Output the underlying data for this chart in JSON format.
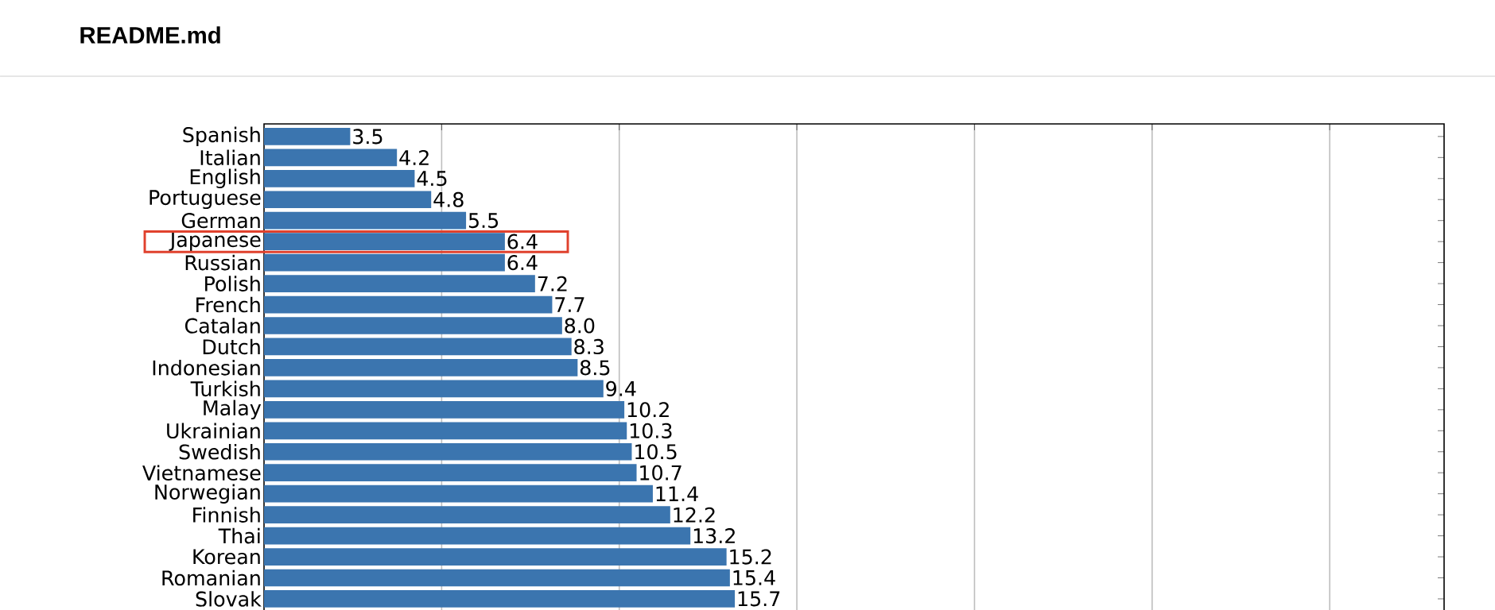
{
  "chart_data": {
    "type": "bar",
    "orientation": "horizontal",
    "title": "README.md",
    "categories": [
      "Spanish",
      "Italian",
      "English",
      "Portuguese",
      "German",
      "Japanese",
      "Russian",
      "Polish",
      "French",
      "Catalan",
      "Dutch",
      "Indonesian",
      "Turkish",
      "Malay",
      "Ukrainian",
      "Swedish",
      "Vietnamese",
      "Norwegian",
      "Finnish",
      "Thai",
      "Korean",
      "Romanian",
      "Slovak"
    ],
    "values": [
      3.5,
      4.2,
      4.5,
      4.8,
      5.5,
      6.4,
      6.4,
      7.2,
      7.7,
      8.0,
      8.3,
      8.5,
      9.4,
      10.2,
      10.3,
      10.5,
      10.7,
      11.4,
      12.2,
      13.2,
      15.2,
      15.4,
      15.7
    ],
    "value_labels": [
      "3.5",
      "4.2",
      "4.5",
      "4.8",
      "5.5",
      "6.4",
      "6.4",
      "7.2",
      "7.7",
      "8.0",
      "8.3",
      "8.5",
      "9.4",
      "10.2",
      "10.3",
      "10.5",
      "10.7",
      "11.4",
      "12.2",
      "13.2",
      "15.2",
      "15.4",
      "15.7"
    ],
    "color": "#3b75af",
    "log": "x",
    "xlim": [
      2.5,
      250
    ],
    "xticks": [
      {
        "value": 5,
        "label": null
      },
      {
        "value": 10,
        "label": null
      },
      {
        "value": 20,
        "label": null
      },
      {
        "value": 40,
        "label": null
      },
      {
        "value": 80,
        "label": null
      },
      {
        "value": 160,
        "label": null
      }
    ],
    "grid": "x",
    "tick_labels": "y"
  }
}
